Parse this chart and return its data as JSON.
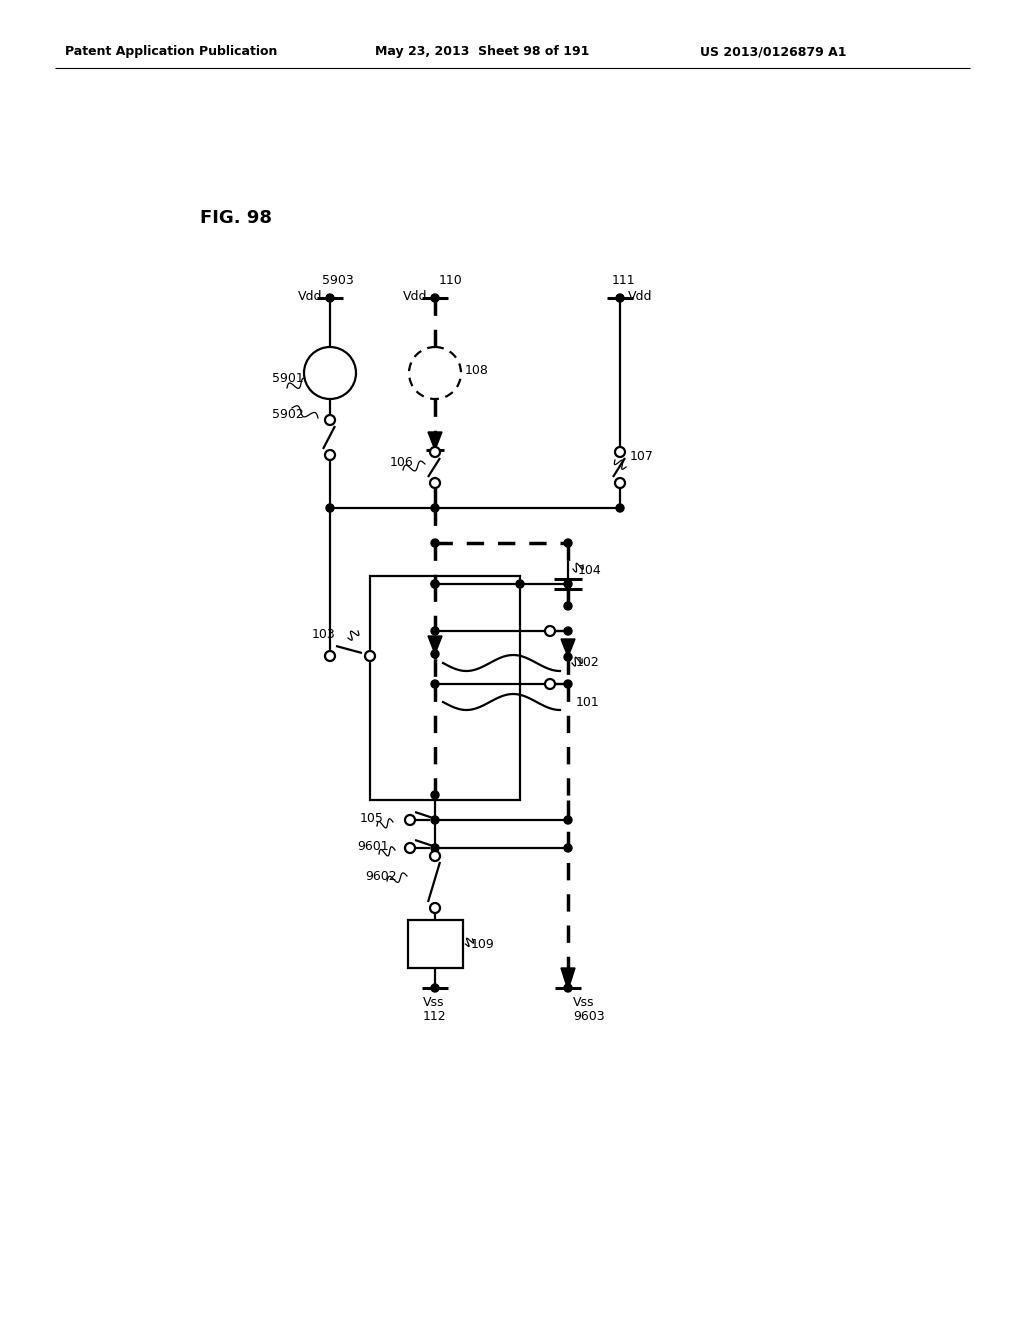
{
  "header_left": "Patent Application Publication",
  "header_mid": "May 23, 2013  Sheet 98 of 191",
  "header_right": "US 2013/0126879 A1",
  "bg_color": "#ffffff",
  "fig_label": "FIG. 98"
}
